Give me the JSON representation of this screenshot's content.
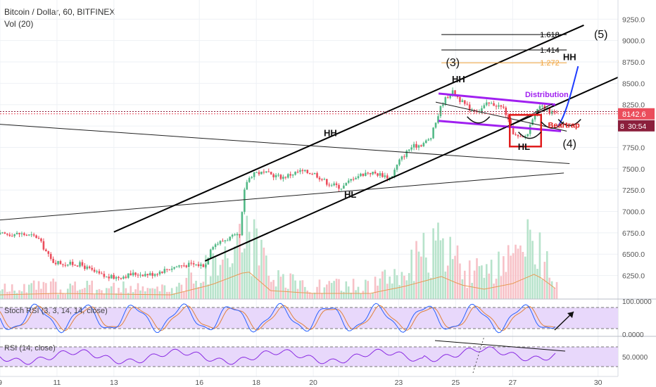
{
  "header": {
    "symbol_line": "Bitcoin / Dollar, 60, BITFINEX",
    "volume_label": "Vol (20)"
  },
  "panes": {
    "stoch_label": "Stoch RSI (3, 3, 14, 14, close)",
    "rsi_label": "RSI (14, close)",
    "stoch_ticks": [
      "100.0000",
      "0.0000"
    ],
    "rsi_ticks": [
      "50.0000"
    ]
  },
  "price_readout": {
    "price": "8142.6",
    "countdown": "30:54",
    "partial_tick": "8"
  },
  "colors": {
    "up": "#53b987",
    "down": "#eb4d5c",
    "channel": "#000000",
    "distribution": "#a020f0",
    "beartrap": "#e11d1d",
    "fib_gold": "#f2a33a",
    "projection": "#1e3cff",
    "stoch_k": "#2962ff",
    "stoch_d": "#e0823c",
    "rsi": "#8a2be2",
    "band_fill": "#e8d8fb"
  },
  "chart_data": {
    "type": "line",
    "title": "Bitcoin / Dollar, 60, BITFINEX",
    "y_range": [
      5975,
      9450
    ],
    "y_ticks": [
      6250,
      6500,
      6750,
      7000,
      7250,
      7500,
      7750,
      8000,
      8250,
      8500,
      8750,
      9000,
      9250
    ],
    "y_tick_labels": [
      "6250.0",
      "6500.0",
      "6750.0",
      "7000.0",
      "7250.0",
      "7500.0",
      "7750.0",
      "8000.0",
      "8250.0",
      "8500.0",
      "8750.0",
      "9000.0",
      "9250.0"
    ],
    "x_range": [
      9,
      30.7
    ],
    "x_ticks": [
      9,
      11,
      13,
      16,
      18,
      20,
      23,
      25,
      27,
      30
    ],
    "x_tick_labels": [
      "9",
      "11",
      "13",
      "16",
      "18",
      "20",
      "23",
      "25",
      "27",
      "30"
    ],
    "price_path": [
      [
        9.0,
        6730
      ],
      [
        9.8,
        6740
      ],
      [
        10.4,
        6700
      ],
      [
        10.9,
        6420
      ],
      [
        11.3,
        6390
      ],
      [
        11.9,
        6380
      ],
      [
        12.4,
        6290
      ],
      [
        12.8,
        6230
      ],
      [
        13.2,
        6230
      ],
      [
        13.8,
        6270
      ],
      [
        14.4,
        6265
      ],
      [
        14.9,
        6320
      ],
      [
        15.4,
        6370
      ],
      [
        15.9,
        6380
      ],
      [
        16.3,
        6370
      ],
      [
        16.5,
        6600
      ],
      [
        16.8,
        6640
      ],
      [
        17.2,
        6700
      ],
      [
        17.5,
        6710
      ],
      [
        17.7,
        7330
      ],
      [
        18.0,
        7460
      ],
      [
        18.5,
        7440
      ],
      [
        19.0,
        7400
      ],
      [
        19.6,
        7470
      ],
      [
        20.1,
        7450
      ],
      [
        20.6,
        7330
      ],
      [
        21.1,
        7280
      ],
      [
        21.5,
        7400
      ],
      [
        22.0,
        7460
      ],
      [
        22.5,
        7430
      ],
      [
        22.8,
        7390
      ],
      [
        23.1,
        7590
      ],
      [
        23.5,
        7750
      ],
      [
        23.9,
        7790
      ],
      [
        24.2,
        7850
      ],
      [
        24.4,
        8060
      ],
      [
        24.6,
        8260
      ],
      [
        24.8,
        8350
      ],
      [
        25.0,
        8400
      ],
      [
        25.3,
        8280
      ],
      [
        25.6,
        8200
      ],
      [
        25.9,
        8180
      ],
      [
        26.2,
        8260
      ],
      [
        26.5,
        8250
      ],
      [
        26.8,
        8200
      ],
      [
        27.0,
        7980
      ],
      [
        27.2,
        7880
      ],
      [
        27.4,
        7850
      ],
      [
        27.6,
        7900
      ],
      [
        27.8,
        8120
      ],
      [
        28.1,
        8230
      ],
      [
        28.4,
        8160
      ],
      [
        28.6,
        8142.6
      ]
    ],
    "volume_envelope": [
      [
        9.0,
        0.15
      ],
      [
        11.0,
        0.2
      ],
      [
        12.5,
        0.18
      ],
      [
        15.0,
        0.15
      ],
      [
        16.4,
        0.5
      ],
      [
        17.7,
        1.0
      ],
      [
        18.5,
        0.3
      ],
      [
        20.0,
        0.2
      ],
      [
        22.0,
        0.2
      ],
      [
        23.2,
        0.45
      ],
      [
        24.5,
        0.8
      ],
      [
        25.2,
        0.5
      ],
      [
        26.0,
        0.35
      ],
      [
        27.0,
        0.55
      ],
      [
        27.8,
        0.9
      ],
      [
        28.6,
        0.3
      ]
    ],
    "channel_lines": [
      [
        [
          13.0,
          6760
        ],
        [
          29.5,
          9180
        ]
      ],
      [
        [
          16.2,
          6420
        ],
        [
          30.7,
          8570
        ]
      ]
    ],
    "trend_lines": [
      [
        [
          9.0,
          8020
        ],
        [
          29.0,
          7560
        ]
      ],
      [
        [
          9.0,
          6900
        ],
        [
          28.8,
          7450
        ]
      ]
    ],
    "distribution_lines": [
      [
        [
          24.4,
          8380
        ],
        [
          28.5,
          8250
        ]
      ],
      [
        [
          24.4,
          8060
        ],
        [
          28.7,
          7940
        ]
      ]
    ],
    "wedge_lines": [
      [
        [
          24.3,
          8280
        ],
        [
          28.9,
          7940
        ]
      ],
      [
        [
          26.6,
          7960
        ],
        [
          28.4,
          8260
        ]
      ]
    ],
    "fib_levels": [
      {
        "label": "1.618",
        "y": 9070,
        "x0": 24.5,
        "x1": 28.9,
        "color": "#000000"
      },
      {
        "label": "1.414",
        "y": 8890,
        "x0": 24.5,
        "x1": 28.9,
        "color": "#000000"
      },
      {
        "label": "1.272",
        "y": 8740,
        "x0": 24.5,
        "x1": 28.9,
        "color": "#f2a33a"
      }
    ],
    "projection": [
      [
        28.6,
        8000
      ],
      [
        28.9,
        8150
      ],
      [
        29.1,
        8450
      ],
      [
        29.3,
        8700
      ]
    ],
    "beartrap_box": {
      "x0": 26.9,
      "x1": 28.0,
      "y0": 7760,
      "y1": 8130
    },
    "dotted_levels": [
      8142.6,
      8170
    ],
    "annotations": [
      {
        "text": "(3)",
        "x": 24.9,
        "y": 8700,
        "size": 16,
        "color": "#111111",
        "weight": "normal"
      },
      {
        "text": "HH",
        "x": 25.1,
        "y": 8510,
        "size": 13,
        "color": "#111111",
        "weight": "bold"
      },
      {
        "text": "HH",
        "x": 20.6,
        "y": 7880,
        "size": 13,
        "color": "#111111",
        "weight": "bold"
      },
      {
        "text": "HL",
        "x": 21.3,
        "y": 7160,
        "size": 13,
        "color": "#111111",
        "weight": "bold"
      },
      {
        "text": "HL",
        "x": 27.4,
        "y": 7720,
        "size": 13,
        "color": "#111111",
        "weight": "bold"
      },
      {
        "text": "(4)",
        "x": 29.0,
        "y": 7750,
        "size": 16,
        "color": "#111111",
        "weight": "normal"
      },
      {
        "text": "(5)",
        "x": 30.1,
        "y": 9030,
        "size": 16,
        "color": "#111111",
        "weight": "normal"
      },
      {
        "text": "HH",
        "x": 29.0,
        "y": 8770,
        "size": 13,
        "color": "#111111",
        "weight": "bold"
      },
      {
        "text": "Distribution",
        "x": 28.2,
        "y": 8340,
        "size": 11,
        "color": "#a020f0",
        "weight": "bold"
      },
      {
        "text": "Beartrap",
        "x": 28.8,
        "y": 7980,
        "size": 11,
        "color": "#e11d1d",
        "weight": "bold"
      }
    ]
  }
}
